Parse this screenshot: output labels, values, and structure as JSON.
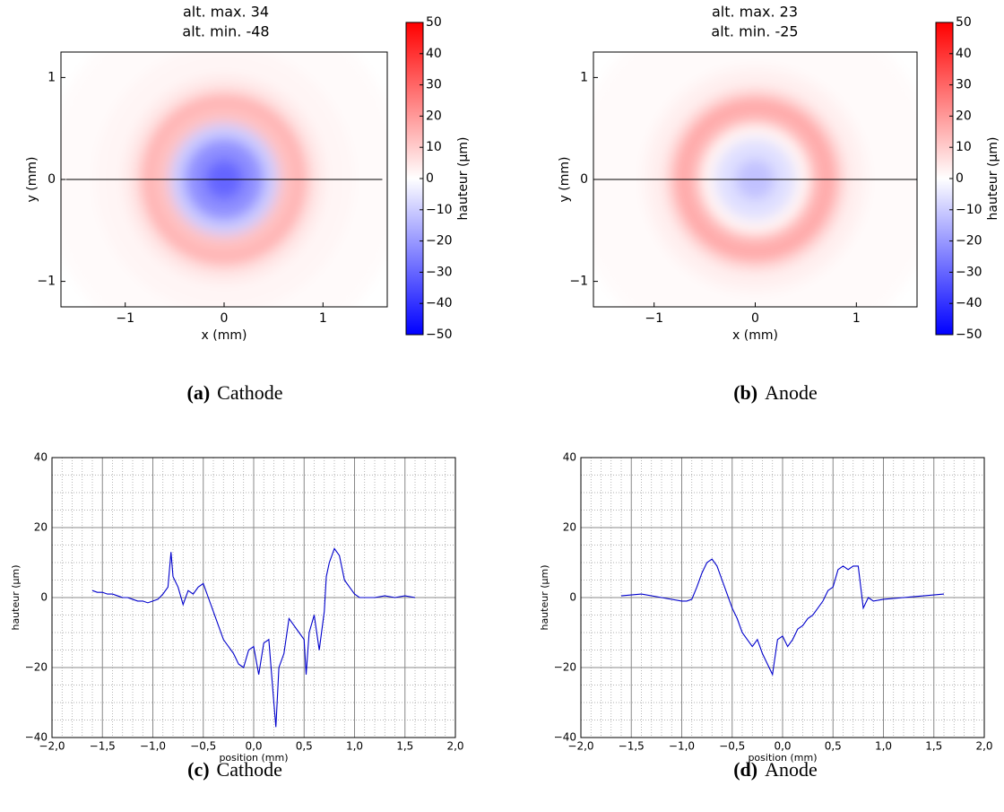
{
  "chart_data": [
    {
      "type": "heatmap",
      "title": [
        "alt. max. 34",
        "alt. min. -48"
      ],
      "xlabel": "x (mm)",
      "ylabel": "y (mm)",
      "colorbar_label": "hauteur (µm)",
      "xlim": [
        -1.65,
        1.65
      ],
      "ylim": [
        -1.25,
        1.25
      ],
      "xticks": [
        {
          "value": -1,
          "label": "−1"
        },
        0,
        1
      ],
      "yticks": [
        {
          "value": -1,
          "label": "−1"
        },
        0,
        1
      ],
      "clim": [
        -50,
        50
      ],
      "cticks": [
        {
          "value": -50,
          "label": "−50"
        },
        {
          "value": -40,
          "label": "−40"
        },
        {
          "value": -30,
          "label": "−30"
        },
        {
          "value": -20,
          "label": "−20"
        },
        {
          "value": -10,
          "label": "−10"
        },
        0,
        10,
        20,
        30,
        40,
        50
      ],
      "profile_y": 0,
      "r": [
        0,
        0.2,
        0.4,
        0.55,
        0.7,
        0.85,
        1.0,
        1.3,
        1.8
      ],
      "values": [
        -35,
        -30,
        -22,
        -10,
        12,
        15,
        5,
        2,
        1
      ],
      "caption": {
        "label": "(a)",
        "text": "Cathode"
      }
    },
    {
      "type": "heatmap",
      "title": [
        "alt. max. 23",
        "alt. min. -25"
      ],
      "xlabel": "x (mm)",
      "ylabel": "y (mm)",
      "colorbar_label": "hauteur (µm)",
      "xlim": [
        -1.6,
        1.6
      ],
      "ylim": [
        -1.25,
        1.25
      ],
      "xticks": [
        {
          "value": -1,
          "label": "−1"
        },
        0,
        1
      ],
      "yticks": [
        {
          "value": -1,
          "label": "−1"
        },
        0,
        1
      ],
      "clim": [
        -50,
        50
      ],
      "cticks": [
        {
          "value": -50,
          "label": "−50"
        },
        {
          "value": -40,
          "label": "−40"
        },
        {
          "value": -30,
          "label": "−30"
        },
        {
          "value": -20,
          "label": "−20"
        },
        {
          "value": -10,
          "label": "−10"
        },
        0,
        10,
        20,
        30,
        40,
        50
      ],
      "profile_y": 0,
      "r": [
        0,
        0.2,
        0.4,
        0.55,
        0.7,
        0.8,
        0.9,
        1.1,
        1.8
      ],
      "values": [
        -15,
        -12,
        -6,
        2,
        15,
        18,
        8,
        3,
        1
      ],
      "caption": {
        "label": "(b)",
        "text": "Anode"
      }
    },
    {
      "type": "line",
      "xlabel": "position (mm)",
      "ylabel": "hauteur (µm)",
      "color": "#0000cc",
      "grid": true,
      "xlim": [
        -2,
        2
      ],
      "ylim": [
        -40,
        40
      ],
      "xticks": [
        {
          "value": -2,
          "label": "−2,0"
        },
        {
          "value": -1.5,
          "label": "−1,5"
        },
        {
          "value": -1,
          "label": "−1,0"
        },
        {
          "value": -0.5,
          "label": "−0,5"
        },
        {
          "value": 0,
          "label": "0,0"
        },
        {
          "value": 0.5,
          "label": "0,5"
        },
        {
          "value": 1,
          "label": "1,0"
        },
        {
          "value": 1.5,
          "label": "1,5"
        },
        {
          "value": 2,
          "label": "2,0"
        }
      ],
      "yticks": [
        {
          "value": -40,
          "label": "−40"
        },
        {
          "value": -20,
          "label": "−20"
        },
        0,
        20,
        40
      ],
      "x": [
        -1.6,
        -1.55,
        -1.5,
        -1.45,
        -1.4,
        -1.35,
        -1.3,
        -1.25,
        -1.2,
        -1.15,
        -1.1,
        -1.05,
        -1.0,
        -0.95,
        -0.9,
        -0.85,
        -0.82,
        -0.8,
        -0.75,
        -0.7,
        -0.65,
        -0.6,
        -0.55,
        -0.5,
        -0.45,
        -0.4,
        -0.35,
        -0.3,
        -0.25,
        -0.2,
        -0.15,
        -0.1,
        -0.05,
        0.0,
        0.05,
        0.1,
        0.15,
        0.2,
        0.22,
        0.25,
        0.3,
        0.35,
        0.4,
        0.45,
        0.5,
        0.52,
        0.55,
        0.6,
        0.65,
        0.7,
        0.72,
        0.75,
        0.8,
        0.85,
        0.9,
        0.95,
        1.0,
        1.05,
        1.1,
        1.2,
        1.3,
        1.4,
        1.5,
        1.6
      ],
      "values": [
        2,
        1.5,
        1.5,
        1,
        1,
        0.5,
        0,
        0,
        -0.5,
        -1,
        -1,
        -1.5,
        -1,
        -0.5,
        1,
        3,
        13,
        6,
        3,
        -2,
        2,
        1,
        3,
        4,
        0,
        -4,
        -8,
        -12,
        -14,
        -16,
        -19,
        -20,
        -15,
        -14,
        -22,
        -13,
        -12,
        -30,
        -37,
        -20,
        -16,
        -6,
        -8,
        -10,
        -12,
        -22,
        -10,
        -5,
        -15,
        -4,
        6,
        10,
        14,
        12,
        5,
        3,
        1,
        0,
        0,
        0,
        0.5,
        0,
        0.5,
        0
      ],
      "caption": {
        "label": "(c)",
        "text": "Cathode"
      }
    },
    {
      "type": "line",
      "xlabel": "position (mm)",
      "ylabel": "hauteur (µm)",
      "color": "#0000cc",
      "grid": true,
      "xlim": [
        -2,
        2
      ],
      "ylim": [
        -40,
        40
      ],
      "xticks": [
        {
          "value": -2,
          "label": "−2,0"
        },
        {
          "value": -1.5,
          "label": "−1,5"
        },
        {
          "value": -1,
          "label": "−1,0"
        },
        {
          "value": -0.5,
          "label": "−0,5"
        },
        {
          "value": 0,
          "label": "0,0"
        },
        {
          "value": 0.5,
          "label": "0,5"
        },
        {
          "value": 1,
          "label": "1,0"
        },
        {
          "value": 1.5,
          "label": "1,5"
        },
        {
          "value": 2,
          "label": "2,0"
        }
      ],
      "yticks": [
        {
          "value": -40,
          "label": "−40"
        },
        {
          "value": -20,
          "label": "−20"
        },
        0,
        20,
        40
      ],
      "x": [
        -1.6,
        -1.4,
        -1.2,
        -1.0,
        -0.95,
        -0.9,
        -0.85,
        -0.8,
        -0.75,
        -0.7,
        -0.65,
        -0.6,
        -0.55,
        -0.5,
        -0.45,
        -0.4,
        -0.35,
        -0.3,
        -0.25,
        -0.2,
        -0.15,
        -0.1,
        -0.05,
        0.0,
        0.05,
        0.1,
        0.15,
        0.2,
        0.25,
        0.3,
        0.35,
        0.4,
        0.45,
        0.5,
        0.55,
        0.6,
        0.65,
        0.7,
        0.75,
        0.8,
        0.85,
        0.9,
        1.0,
        1.2,
        1.4,
        1.6
      ],
      "values": [
        0.5,
        1,
        0,
        -1,
        -1,
        -0.5,
        3,
        7,
        10,
        11,
        9,
        5,
        1,
        -3,
        -6,
        -10,
        -12,
        -14,
        -12,
        -16,
        -19,
        -22,
        -12,
        -11,
        -14,
        -12,
        -9,
        -8,
        -6,
        -5,
        -3,
        -1,
        2,
        3,
        8,
        9,
        8,
        9,
        9,
        -3,
        0,
        -1,
        -0.5,
        0,
        0.5,
        1
      ],
      "caption": {
        "label": "(d)",
        "text": "Anode"
      }
    }
  ]
}
